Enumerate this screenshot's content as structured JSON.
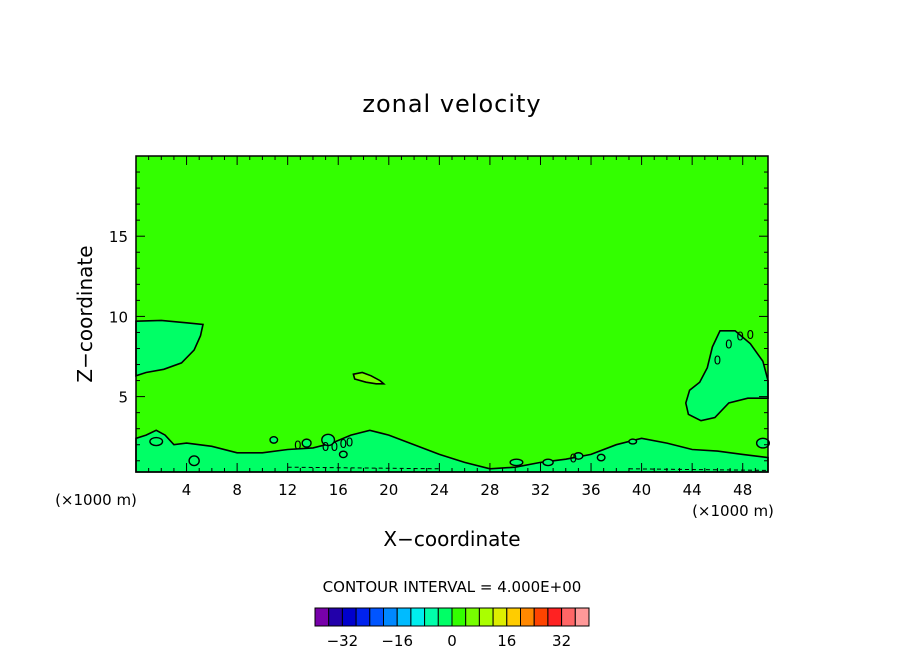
{
  "chart_data": {
    "type": "heatmap",
    "title": "zonal velocity",
    "xlabel": "X−coordinate",
    "ylabel": "Z−coordinate",
    "x_unit_left": "(×1000 m)",
    "x_unit_right": "(×1000 m)",
    "xlim": [
      0,
      50
    ],
    "ylim": [
      0.3,
      20
    ],
    "x_ticks": [
      4,
      8,
      12,
      16,
      20,
      24,
      28,
      32,
      36,
      40,
      44,
      48
    ],
    "x_tick_labels": [
      "4",
      "8",
      "12",
      "16",
      "20",
      "24",
      "28",
      "32",
      "36",
      "40",
      "44",
      "48"
    ],
    "y_ticks": [
      5,
      10,
      15
    ],
    "y_tick_labels": [
      "5",
      "10",
      "15"
    ],
    "grid": false,
    "background_value": 0,
    "contour_interval_label": "CONTOUR INTERVAL = 4.000E+00",
    "colorbar": {
      "levels": [
        -36,
        -32,
        -28,
        -24,
        -20,
        -16,
        -12,
        -8,
        -4,
        0,
        4,
        8,
        12,
        16,
        20,
        24,
        28,
        32,
        36
      ],
      "tick_values": [
        -32,
        -16,
        0,
        16,
        32
      ],
      "tick_labels": [
        "−32",
        "−16",
        "0",
        "16",
        "32"
      ],
      "colors": [
        "#7700aa",
        "#2200aa",
        "#0000cc",
        "#0022ee",
        "#0055ff",
        "#0088ff",
        "#00bbff",
        "#00eeee",
        "#00ffaa",
        "#00ff66",
        "#33ff00",
        "#77ff00",
        "#aaff00",
        "#ddee00",
        "#ffcc00",
        "#ff8800",
        "#ff4400",
        "#ff2222",
        "#ff6666",
        "#ff9999"
      ]
    },
    "regions": [
      {
        "level_band": "-4 to 0",
        "color": "#00ff66",
        "x": [
          0,
          5.3
        ],
        "z": [
          6.3,
          9.7
        ],
        "description_location": "left-upper"
      },
      {
        "level_band": "-4 to 0",
        "color": "#00ff66",
        "x": [
          0,
          50
        ],
        "z": [
          0.3,
          3
        ],
        "description_location": "bottom"
      },
      {
        "level_band": "-4 to 0",
        "color": "#00ff66",
        "x": [
          43.5,
          50
        ],
        "z": [
          3.5,
          9.3
        ],
        "description_location": "right"
      },
      {
        "level_band": "4 to 8",
        "color": "#77ff00",
        "x": [
          17.2,
          19.6
        ],
        "z": [
          5.8,
          6.5
        ],
        "description_location": "center"
      }
    ],
    "annotations": [
      "0",
      "0",
      "0",
      "0",
      "0",
      "0",
      "0",
      "0",
      "0",
      "0"
    ],
    "colors": {
      "background_field": "#33ff00",
      "frame": "#000000"
    }
  }
}
